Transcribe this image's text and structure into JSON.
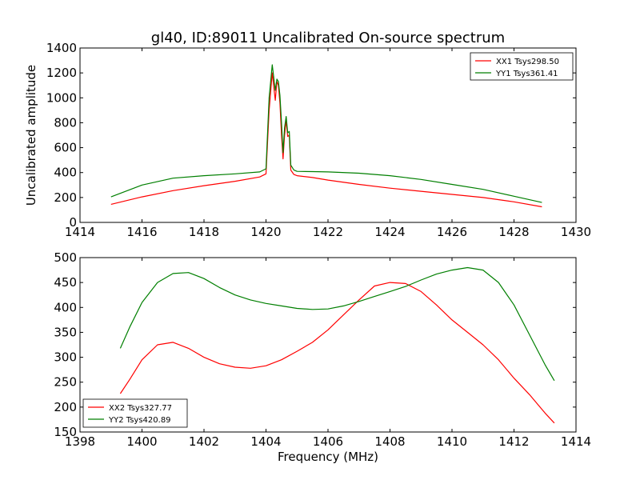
{
  "figure": {
    "title": "gl40, ID:89011 Uncalibrated On-source spectrum",
    "colors": {
      "red": "#ff0000",
      "green": "#007f00"
    }
  },
  "chart_data": [
    {
      "type": "line",
      "title": "gl40, ID:89011 Uncalibrated On-source spectrum",
      "xlabel": "",
      "ylabel": "Uncalibrated amplitude",
      "xlim": [
        1414,
        1430
      ],
      "ylim": [
        0,
        1400
      ],
      "xticks": [
        "1414",
        "1416",
        "1418",
        "1420",
        "1422",
        "1424",
        "1426",
        "1428",
        "1430"
      ],
      "yticks": [
        "0",
        "200",
        "400",
        "600",
        "800",
        "1000",
        "1200",
        "1400"
      ],
      "legend_position": "top-right",
      "grid": false,
      "series": [
        {
          "name": "XX1 Tsys298.50",
          "color": "#ff0000",
          "x": [
            1415.0,
            1416.0,
            1417.0,
            1418.0,
            1419.0,
            1419.8,
            1420.0,
            1420.1,
            1420.2,
            1420.3,
            1420.35,
            1420.4,
            1420.45,
            1420.5,
            1420.55,
            1420.6,
            1420.65,
            1420.7,
            1420.75,
            1420.8,
            1420.9,
            1421.0,
            1421.5,
            1422.0,
            1423.0,
            1424.0,
            1425.0,
            1426.0,
            1427.0,
            1428.0,
            1428.9
          ],
          "y": [
            145,
            205,
            255,
            295,
            330,
            365,
            390,
            900,
            1200,
            980,
            1130,
            1100,
            960,
            700,
            510,
            700,
            820,
            690,
            700,
            420,
            385,
            375,
            360,
            340,
            305,
            275,
            250,
            225,
            200,
            165,
            125
          ]
        },
        {
          "name": "YY1 Tsys361.41",
          "color": "#007f00",
          "x": [
            1415.0,
            1416.0,
            1417.0,
            1418.0,
            1419.0,
            1419.8,
            1420.0,
            1420.1,
            1420.2,
            1420.3,
            1420.35,
            1420.4,
            1420.45,
            1420.5,
            1420.55,
            1420.6,
            1420.65,
            1420.7,
            1420.75,
            1420.8,
            1420.9,
            1421.0,
            1421.5,
            1422.0,
            1423.0,
            1424.0,
            1425.0,
            1426.0,
            1427.0,
            1428.0,
            1428.9
          ],
          "y": [
            205,
            300,
            355,
            375,
            390,
            405,
            430,
            1000,
            1265,
            1060,
            1150,
            1130,
            1020,
            800,
            560,
            760,
            850,
            720,
            730,
            460,
            420,
            410,
            408,
            405,
            395,
            375,
            345,
            305,
            265,
            210,
            160
          ]
        }
      ]
    },
    {
      "type": "line",
      "title": "",
      "xlabel": "Frequency (MHz)",
      "ylabel": "",
      "xlim": [
        1398,
        1414
      ],
      "ylim": [
        150,
        500
      ],
      "xticks": [
        "1398",
        "1400",
        "1402",
        "1404",
        "1406",
        "1408",
        "1410",
        "1412",
        "1414"
      ],
      "yticks": [
        "150",
        "200",
        "250",
        "300",
        "350",
        "400",
        "450",
        "500"
      ],
      "legend_position": "bottom-left",
      "grid": false,
      "series": [
        {
          "name": "XX2 Tsys327.77",
          "color": "#ff0000",
          "x": [
            1399.3,
            1399.6,
            1400.0,
            1400.5,
            1401.0,
            1401.5,
            1402.0,
            1402.5,
            1403.0,
            1403.5,
            1404.0,
            1404.5,
            1405.0,
            1405.5,
            1406.0,
            1406.5,
            1407.0,
            1407.5,
            1408.0,
            1408.5,
            1409.0,
            1409.5,
            1410.0,
            1410.5,
            1411.0,
            1411.5,
            1412.0,
            1412.5,
            1413.0,
            1413.3
          ],
          "y": [
            227,
            255,
            295,
            325,
            330,
            318,
            300,
            287,
            280,
            278,
            283,
            295,
            312,
            330,
            355,
            385,
            415,
            443,
            450,
            448,
            432,
            405,
            375,
            350,
            325,
            295,
            258,
            225,
            188,
            168
          ]
        },
        {
          "name": "YY2 Tsys420.89",
          "color": "#007f00",
          "x": [
            1399.3,
            1399.6,
            1400.0,
            1400.5,
            1401.0,
            1401.5,
            1402.0,
            1402.5,
            1403.0,
            1403.5,
            1404.0,
            1404.5,
            1405.0,
            1405.5,
            1406.0,
            1406.5,
            1407.0,
            1407.5,
            1408.0,
            1408.5,
            1409.0,
            1409.5,
            1410.0,
            1410.5,
            1411.0,
            1411.5,
            1412.0,
            1412.5,
            1413.0,
            1413.3
          ],
          "y": [
            318,
            360,
            410,
            450,
            468,
            470,
            458,
            440,
            425,
            415,
            408,
            403,
            398,
            396,
            397,
            403,
            412,
            422,
            432,
            442,
            455,
            467,
            475,
            480,
            475,
            450,
            405,
            345,
            285,
            253
          ]
        }
      ]
    }
  ]
}
